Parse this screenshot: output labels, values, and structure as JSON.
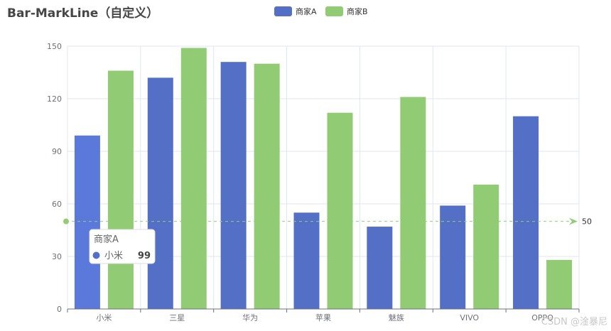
{
  "chart_data": {
    "type": "bar",
    "title": "Bar-MarkLine（自定义）",
    "categories": [
      "小米",
      "三星",
      "华为",
      "苹果",
      "魅族",
      "VIVO",
      "OPPO"
    ],
    "series": [
      {
        "name": "商家A",
        "values": [
          99,
          132,
          141,
          55,
          47,
          59,
          110
        ],
        "color": "#5470c6"
      },
      {
        "name": "商家B",
        "values": [
          136,
          149,
          140,
          112,
          121,
          71,
          28
        ],
        "color": "#91cc75"
      }
    ],
    "ylim": [
      0,
      150
    ],
    "yticks": [
      0,
      30,
      60,
      90,
      120,
      150
    ],
    "grid": true,
    "legend_position": "top-center",
    "markline": {
      "value": 50,
      "label": "50",
      "color": "#91cc75"
    },
    "tooltip": {
      "series": "商家A",
      "category": "小米",
      "value": "99"
    }
  },
  "watermark": "CSDN @淦暴尼"
}
